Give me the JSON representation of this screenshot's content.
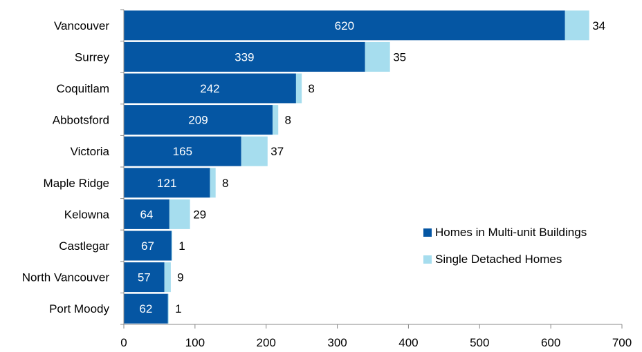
{
  "chart_data": {
    "type": "bar",
    "orientation": "horizontal",
    "stacked": true,
    "categories": [
      "Vancouver",
      "Surrey",
      "Coquitlam",
      "Abbotsford",
      "Victoria",
      "Maple Ridge",
      "Kelowna",
      "Castlegar",
      "North Vancouver",
      "Port Moody"
    ],
    "series": [
      {
        "name": "Homes in Multi-unit Buildings",
        "color": "#0556A3",
        "values": [
          620,
          339,
          242,
          209,
          165,
          121,
          64,
          67,
          57,
          62
        ]
      },
      {
        "name": "Single Detached Homes",
        "color": "#A6DDEE",
        "values": [
          34,
          35,
          8,
          8,
          37,
          8,
          29,
          1,
          9,
          1
        ]
      }
    ],
    "xlim": [
      0,
      700
    ],
    "xticks": [
      0,
      100,
      200,
      300,
      400,
      500,
      600,
      700
    ],
    "grid": false,
    "legend_position": "bottom-right"
  }
}
